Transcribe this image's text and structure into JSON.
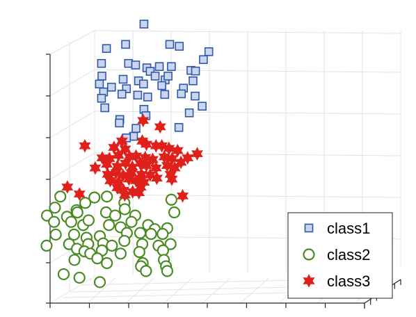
{
  "chart_data": {
    "type": "scatter",
    "projection": "3d",
    "grid": true,
    "legend_position": "bottom-right",
    "colors": {
      "class1": "#2f57a8",
      "class1_fill": "#c9d6ee",
      "class2": "#4a8a24",
      "class2_fill": "#ffffff",
      "class3": "#e0201a",
      "class3_fill": "#e0201a"
    },
    "legend": [
      {
        "label": "class1",
        "marker": "square"
      },
      {
        "label": "class2",
        "marker": "circle"
      },
      {
        "label": "class3",
        "marker": "hexagram"
      }
    ],
    "series": [
      {
        "name": "class1",
        "marker": "square",
        "points": [
          [
            0.346,
            0.924
          ],
          [
            0.256,
            0.847
          ],
          [
            0.302,
            0.86
          ],
          [
            0.408,
            0.86
          ],
          [
            0.431,
            0.854
          ],
          [
            0.502,
            0.837
          ],
          [
            0.489,
            0.812
          ],
          [
            0.244,
            0.8
          ],
          [
            0.309,
            0.8
          ],
          [
            0.326,
            0.795
          ],
          [
            0.353,
            0.786
          ],
          [
            0.361,
            0.775
          ],
          [
            0.383,
            0.79
          ],
          [
            0.412,
            0.79
          ],
          [
            0.459,
            0.778
          ],
          [
            0.47,
            0.776
          ],
          [
            0.245,
            0.76
          ],
          [
            0.296,
            0.75
          ],
          [
            0.333,
            0.745
          ],
          [
            0.373,
            0.76
          ],
          [
            0.397,
            0.748
          ],
          [
            0.404,
            0.76
          ],
          [
            0.239,
            0.735
          ],
          [
            0.268,
            0.725
          ],
          [
            0.304,
            0.72
          ],
          [
            0.345,
            0.735
          ],
          [
            0.389,
            0.73
          ],
          [
            0.441,
            0.722
          ],
          [
            0.464,
            0.745
          ],
          [
            0.249,
            0.71
          ],
          [
            0.293,
            0.703
          ],
          [
            0.331,
            0.7
          ],
          [
            0.355,
            0.694
          ],
          [
            0.396,
            0.702
          ],
          [
            0.436,
            0.704
          ],
          [
            0.469,
            0.697
          ],
          [
            0.244,
            0.69
          ],
          [
            0.252,
            0.66
          ],
          [
            0.346,
            0.655
          ],
          [
            0.486,
            0.665
          ],
          [
            0.455,
            0.644
          ],
          [
            0.288,
            0.623
          ],
          [
            0.351,
            0.635
          ],
          [
            0.287,
            0.612
          ],
          [
            0.327,
            0.595
          ],
          [
            0.43,
            0.598
          ],
          [
            0.321,
            0.57
          ],
          [
            0.304,
            0.565
          ]
        ]
      },
      {
        "name": "class2",
        "marker": "circle",
        "points": [
          [
            0.227,
            0.377
          ],
          [
            0.145,
            0.38
          ],
          [
            0.257,
            0.38
          ],
          [
            0.205,
            0.36
          ],
          [
            0.299,
            0.36
          ],
          [
            0.412,
            0.37
          ],
          [
            0.132,
            0.345
          ],
          [
            0.184,
            0.337
          ],
          [
            0.113,
            0.32
          ],
          [
            0.161,
            0.316
          ],
          [
            0.186,
            0.33
          ],
          [
            0.255,
            0.33
          ],
          [
            0.277,
            0.32
          ],
          [
            0.3,
            0.34
          ],
          [
            0.325,
            0.32
          ],
          [
            0.419,
            0.33
          ],
          [
            0.13,
            0.3
          ],
          [
            0.171,
            0.3
          ],
          [
            0.2,
            0.29
          ],
          [
            0.213,
            0.305
          ],
          [
            0.262,
            0.29
          ],
          [
            0.29,
            0.283
          ],
          [
            0.316,
            0.3
          ],
          [
            0.356,
            0.29
          ],
          [
            0.372,
            0.277
          ],
          [
            0.402,
            0.28
          ],
          [
            0.134,
            0.26
          ],
          [
            0.178,
            0.26
          ],
          [
            0.208,
            0.25
          ],
          [
            0.24,
            0.255
          ],
          [
            0.305,
            0.265
          ],
          [
            0.337,
            0.265
          ],
          [
            0.363,
            0.262
          ],
          [
            0.391,
            0.262
          ],
          [
            0.112,
            0.225
          ],
          [
            0.166,
            0.23
          ],
          [
            0.185,
            0.215
          ],
          [
            0.212,
            0.23
          ],
          [
            0.248,
            0.232
          ],
          [
            0.269,
            0.225
          ],
          [
            0.299,
            0.24
          ],
          [
            0.342,
            0.23
          ],
          [
            0.381,
            0.225
          ],
          [
            0.41,
            0.23
          ],
          [
            0.203,
            0.207
          ],
          [
            0.217,
            0.2
          ],
          [
            0.245,
            0.21
          ],
          [
            0.29,
            0.2
          ],
          [
            0.335,
            0.205
          ],
          [
            0.392,
            0.21
          ],
          [
            0.179,
            0.18
          ],
          [
            0.234,
            0.185
          ],
          [
            0.257,
            0.17
          ],
          [
            0.343,
            0.17
          ],
          [
            0.394,
            0.18
          ],
          [
            0.399,
            0.16
          ],
          [
            0.153,
            0.135
          ],
          [
            0.191,
            0.124
          ],
          [
            0.339,
            0.16
          ],
          [
            0.351,
            0.145
          ],
          [
            0.402,
            0.145
          ],
          [
            0.24,
            0.11
          ]
        ]
      },
      {
        "name": "class3",
        "marker": "hexagram",
        "points": [
          [
            0.344,
            0.62
          ],
          [
            0.385,
            0.6
          ],
          [
            0.293,
            0.555
          ],
          [
            0.342,
            0.555
          ],
          [
            0.204,
            0.54
          ],
          [
            0.274,
            0.535
          ],
          [
            0.301,
            0.53
          ],
          [
            0.352,
            0.545
          ],
          [
            0.375,
            0.54
          ],
          [
            0.389,
            0.54
          ],
          [
            0.406,
            0.532
          ],
          [
            0.427,
            0.525
          ],
          [
            0.474,
            0.515
          ],
          [
            0.246,
            0.502
          ],
          [
            0.263,
            0.5
          ],
          [
            0.285,
            0.51
          ],
          [
            0.311,
            0.505
          ],
          [
            0.327,
            0.508
          ],
          [
            0.349,
            0.503
          ],
          [
            0.367,
            0.497
          ],
          [
            0.395,
            0.505
          ],
          [
            0.414,
            0.5
          ],
          [
            0.451,
            0.502
          ],
          [
            0.229,
            0.47
          ],
          [
            0.257,
            0.482
          ],
          [
            0.282,
            0.475
          ],
          [
            0.302,
            0.485
          ],
          [
            0.318,
            0.473
          ],
          [
            0.337,
            0.485
          ],
          [
            0.352,
            0.478
          ],
          [
            0.375,
            0.47
          ],
          [
            0.402,
            0.478
          ],
          [
            0.42,
            0.47
          ],
          [
            0.435,
            0.488
          ],
          [
            0.259,
            0.45
          ],
          [
            0.279,
            0.455
          ],
          [
            0.296,
            0.447
          ],
          [
            0.316,
            0.455
          ],
          [
            0.34,
            0.45
          ],
          [
            0.361,
            0.448
          ],
          [
            0.377,
            0.438
          ],
          [
            0.41,
            0.45
          ],
          [
            0.265,
            0.43
          ],
          [
            0.285,
            0.425
          ],
          [
            0.31,
            0.435
          ],
          [
            0.327,
            0.43
          ],
          [
            0.346,
            0.425
          ],
          [
            0.413,
            0.435
          ],
          [
            0.162,
            0.41
          ],
          [
            0.282,
            0.408
          ],
          [
            0.297,
            0.4
          ],
          [
            0.319,
            0.395
          ],
          [
            0.338,
            0.41
          ],
          [
            0.191,
            0.388
          ],
          [
            0.3,
            0.385
          ],
          [
            0.334,
            0.392
          ],
          [
            0.439,
            0.382
          ]
        ]
      }
    ]
  }
}
